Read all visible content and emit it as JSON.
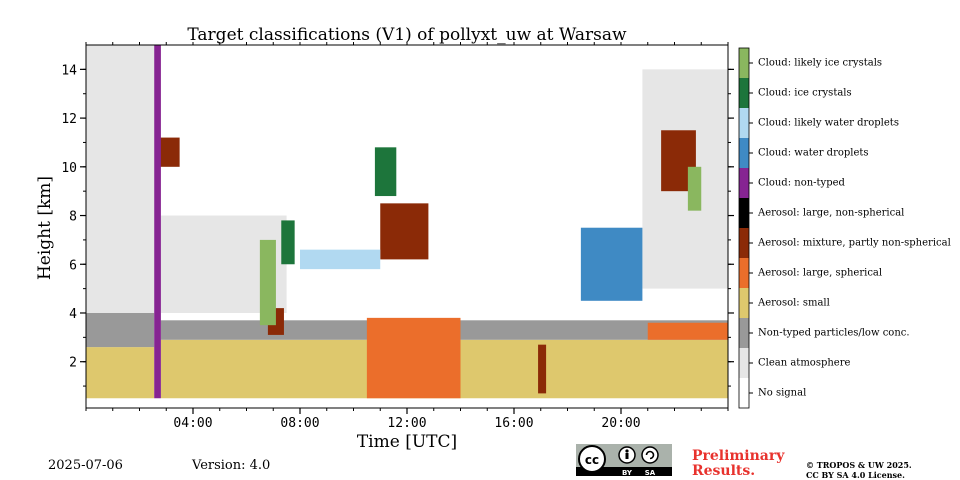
{
  "chart_data": {
    "type": "heatmap",
    "title": "Target classifications (V1) of pollyxt_uw at Warsaw",
    "xlabel": "Time [UTC]",
    "ylabel": "Height [km]",
    "x_unit": "hours UTC",
    "xlim": [
      0,
      24
    ],
    "ylim": [
      0.1,
      15.0
    ],
    "x_tick_labels": [
      {
        "value": 4,
        "label": "04:00"
      },
      {
        "value": 8,
        "label": "08:00"
      },
      {
        "value": 12,
        "label": "12:00"
      },
      {
        "value": 16,
        "label": "16:00"
      },
      {
        "value": 20,
        "label": "20:00"
      }
    ],
    "x_minor_ticks_every_hours": 1,
    "y_ticks": [
      2,
      4,
      6,
      8,
      10,
      12,
      14
    ],
    "y_minor_ticks_every_km": 1,
    "grid": false,
    "legend_placement": "right colorbar",
    "classes": [
      {
        "name": "No signal",
        "color": "#ffffff"
      },
      {
        "name": "Clean atmosphere",
        "color": "#e6e6e6"
      },
      {
        "name": "Non-typed particles/low conc.",
        "color": "#999999"
      },
      {
        "name": "Aerosol: small",
        "color": "#dec86d"
      },
      {
        "name": "Aerosol: large, spherical",
        "color": "#eb6e2b"
      },
      {
        "name": "Aerosol: mixture, partly non-spherical",
        "color": "#8b2a07"
      },
      {
        "name": "Aerosol: large, non-spherical",
        "color": "#000000"
      },
      {
        "name": "Cloud: non-typed",
        "color": "#862492"
      },
      {
        "name": "Cloud: water droplets",
        "color": "#3f8ac4"
      },
      {
        "name": "Cloud: likely water droplets",
        "color": "#b1d9f1"
      },
      {
        "name": "Cloud: ice crystals",
        "color": "#1d753b"
      },
      {
        "name": "Cloud: likely ice crystals",
        "color": "#8ab75f"
      }
    ],
    "regions": [
      {
        "class": "Aerosol: small",
        "x": [
          0.0,
          2.55
        ],
        "y": [
          0.5,
          2.6
        ]
      },
      {
        "class": "Aerosol: small",
        "x": [
          2.8,
          24.0
        ],
        "y": [
          0.5,
          2.9
        ]
      },
      {
        "class": "Non-typed particles/low conc.",
        "x": [
          0.0,
          2.55
        ],
        "y": [
          2.6,
          4.0
        ]
      },
      {
        "class": "Non-typed particles/low conc.",
        "x": [
          2.8,
          24.0
        ],
        "y": [
          2.9,
          3.7
        ]
      },
      {
        "class": "Clean atmosphere",
        "x": [
          0.0,
          2.55
        ],
        "y": [
          4.0,
          15.0
        ]
      },
      {
        "class": "Clean atmosphere",
        "x": [
          2.8,
          7.5
        ],
        "y": [
          4.0,
          8.0
        ]
      },
      {
        "class": "Clean atmosphere",
        "x": [
          20.8,
          24.0
        ],
        "y": [
          5.0,
          14.0
        ]
      },
      {
        "class": "Aerosol: large, spherical",
        "x": [
          10.5,
          14.0
        ],
        "y": [
          0.5,
          3.8
        ]
      },
      {
        "class": "Aerosol: large, spherical",
        "x": [
          21.0,
          24.0
        ],
        "y": [
          2.9,
          3.6
        ]
      },
      {
        "class": "Aerosol: mixture, partly non-spherical",
        "x": [
          6.8,
          7.4
        ],
        "y": [
          3.1,
          4.2
        ]
      },
      {
        "class": "Aerosol: mixture, partly non-spherical",
        "x": [
          2.6,
          3.5
        ],
        "y": [
          10.0,
          11.2
        ]
      },
      {
        "class": "Aerosol: mixture, partly non-spherical",
        "x": [
          11.0,
          12.8
        ],
        "y": [
          6.2,
          8.5
        ]
      },
      {
        "class": "Aerosol: mixture, partly non-spherical",
        "x": [
          21.5,
          22.8
        ],
        "y": [
          9.0,
          11.5
        ]
      },
      {
        "class": "Aerosol: mixture, partly non-spherical",
        "x": [
          16.9,
          17.2
        ],
        "y": [
          0.7,
          2.7
        ]
      },
      {
        "class": "Cloud: ice crystals",
        "x": [
          10.8,
          11.6
        ],
        "y": [
          8.8,
          10.8
        ]
      },
      {
        "class": "Cloud: ice crystals",
        "x": [
          7.3,
          7.8
        ],
        "y": [
          6.0,
          7.8
        ]
      },
      {
        "class": "Cloud: likely ice crystals",
        "x": [
          6.5,
          7.1
        ],
        "y": [
          3.5,
          7.0
        ]
      },
      {
        "class": "Cloud: likely ice crystals",
        "x": [
          22.5,
          23.0
        ],
        "y": [
          8.2,
          10.0
        ]
      },
      {
        "class": "Cloud: non-typed",
        "x": [
          2.55,
          2.8
        ],
        "y": [
          0.5,
          15.0
        ]
      },
      {
        "class": "Cloud: water droplets",
        "x": [
          18.5,
          20.8
        ],
        "y": [
          4.5,
          7.5
        ]
      },
      {
        "class": "Cloud: likely water droplets",
        "x": [
          8.0,
          11.0
        ],
        "y": [
          5.8,
          6.6
        ]
      }
    ]
  },
  "footer": {
    "date": "2025-07-06",
    "version": "Version: 4.0",
    "preliminary_line1": "Preliminary",
    "preliminary_line2": "Results.",
    "license_line1": "© TROPOS & UW 2025.",
    "license_line2": "CC BY SA 4.0 License.",
    "badge_by": "BY",
    "badge_sa": "SA"
  }
}
